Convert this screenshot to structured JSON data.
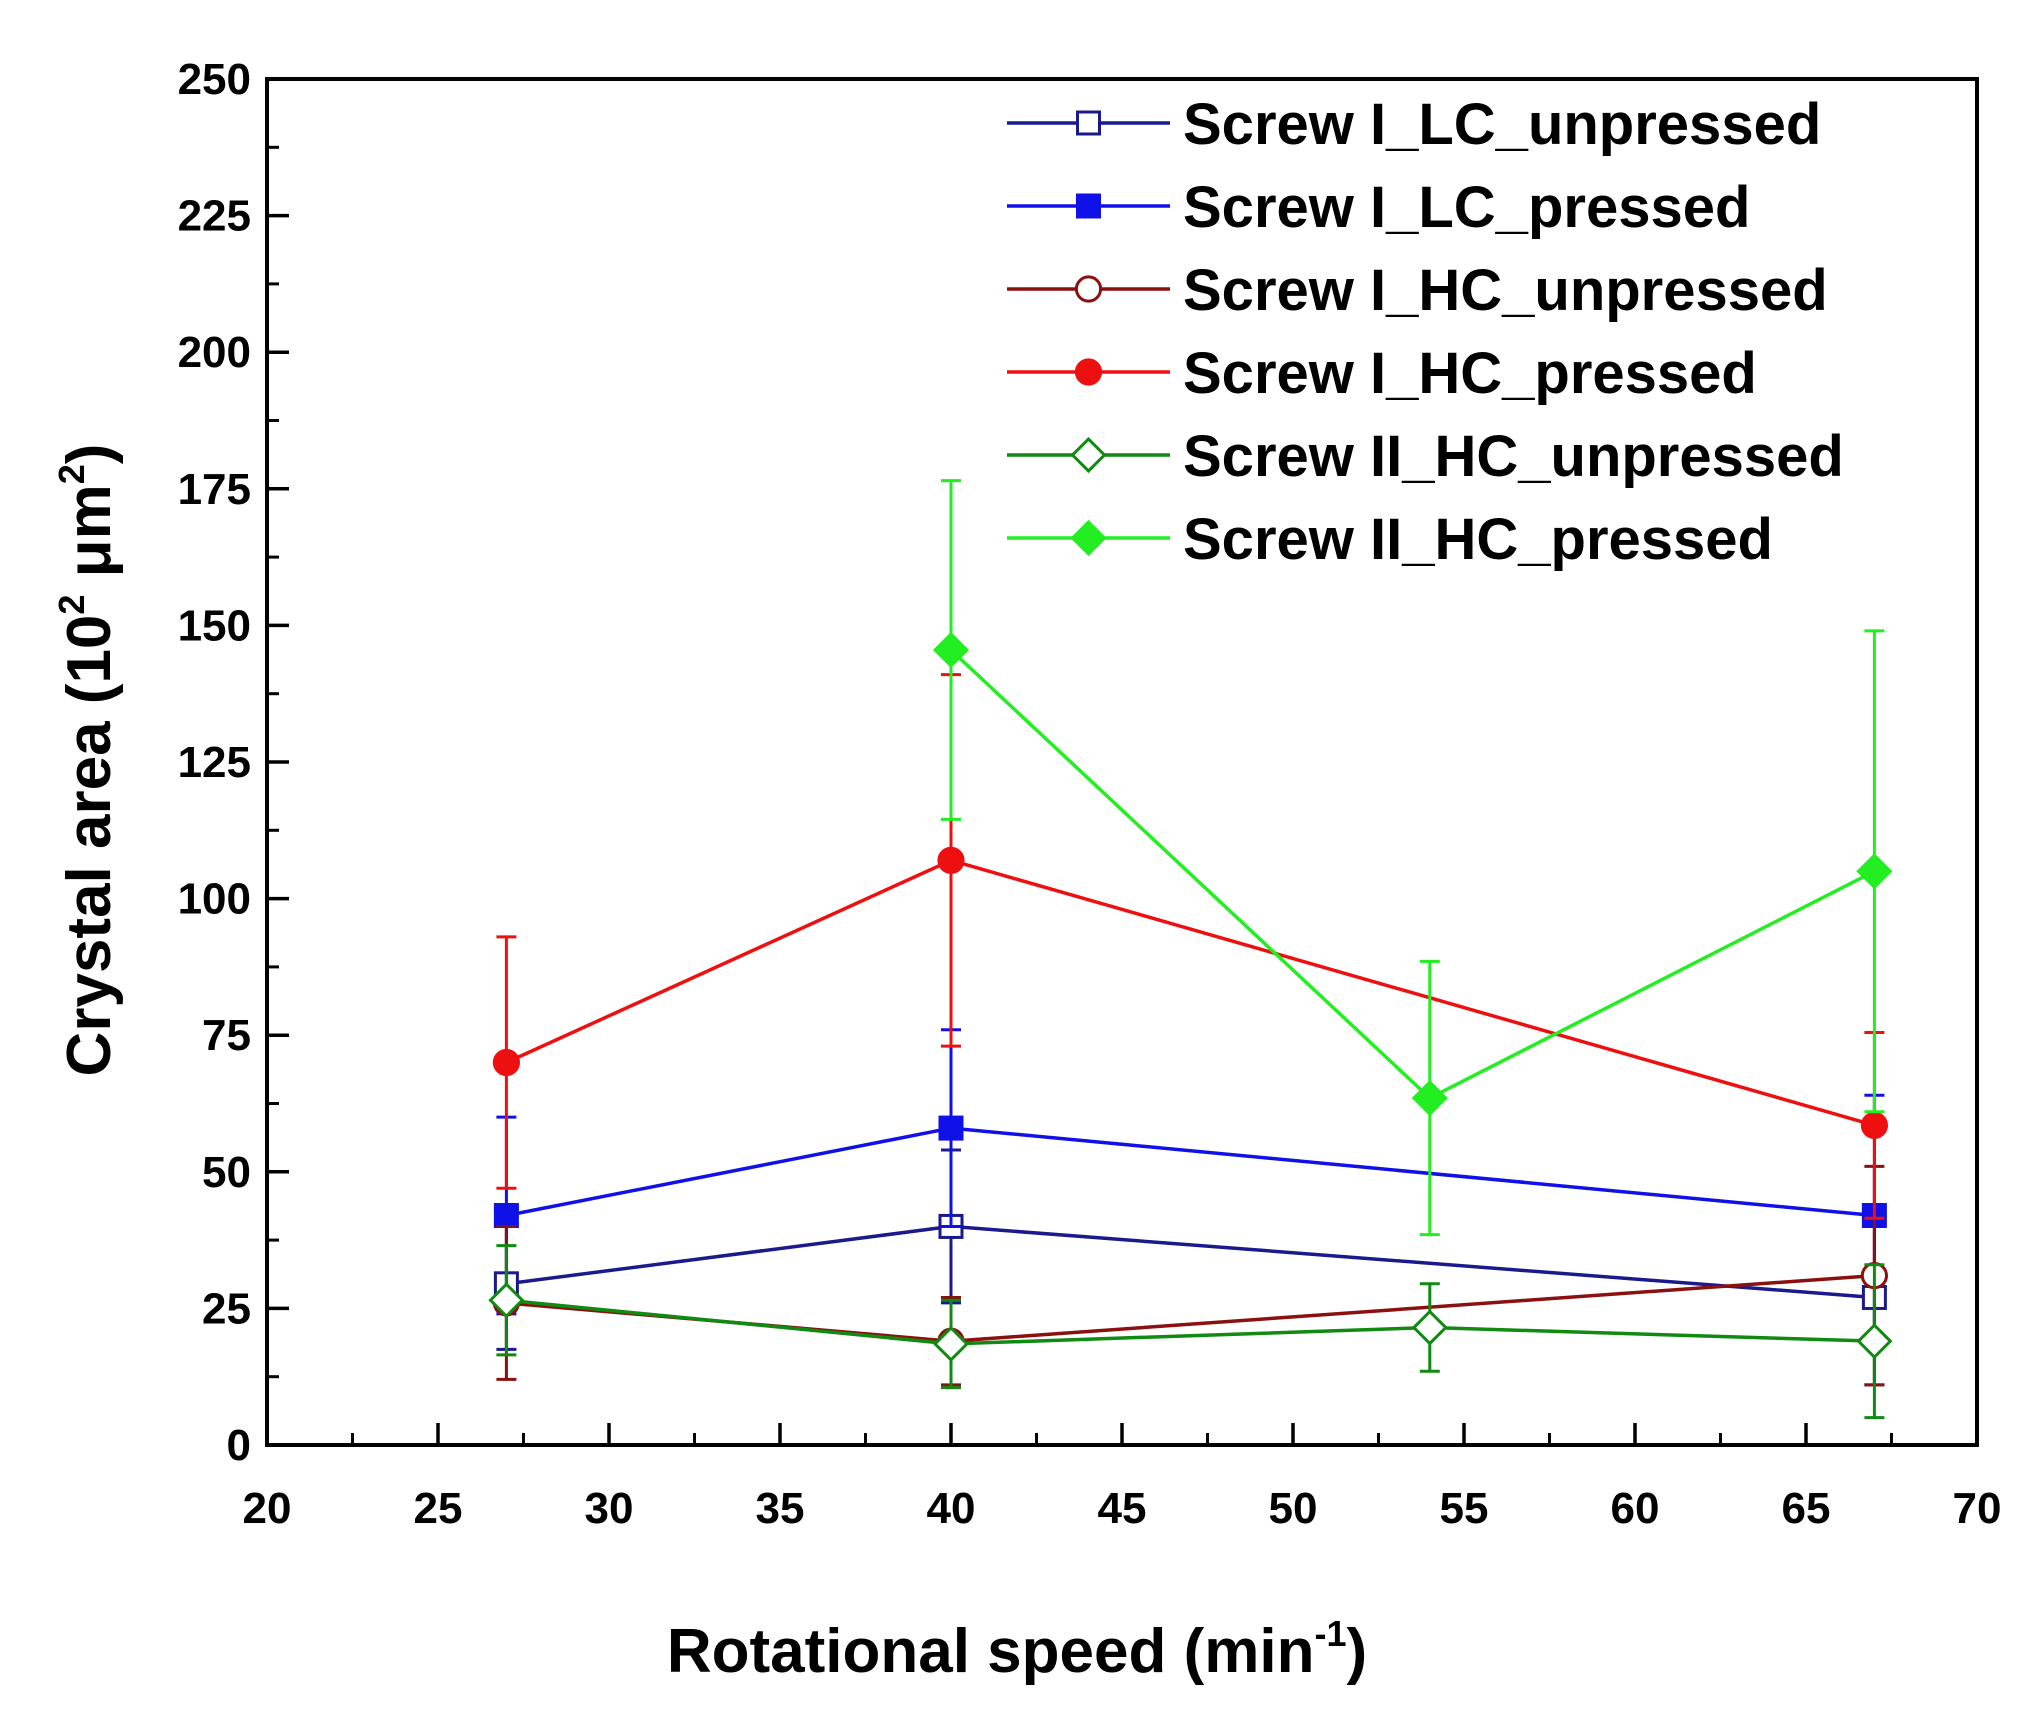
{
  "chart_data": {
    "type": "line",
    "xlabel": "Rotational speed (min",
    "xlabel_sup": "-1",
    "xlabel_tail": ")",
    "ylabel": "Crystal area (10",
    "ylabel_sup": "2",
    "ylabel_mid": " μm",
    "ylabel_sup2": "2",
    "ylabel_tail": ")",
    "xlim": [
      20,
      70
    ],
    "ylim": [
      0,
      250
    ],
    "xticks": [
      20,
      25,
      30,
      35,
      40,
      45,
      50,
      55,
      60,
      65,
      70
    ],
    "yticks": [
      0,
      25,
      50,
      75,
      100,
      125,
      150,
      175,
      200,
      225,
      250
    ],
    "grid": false,
    "legend_position": "top-right",
    "series": [
      {
        "name": "Screw I_LC_unpressed",
        "color": "#1a1a8c",
        "marker": "square",
        "filled": false,
        "x": [
          27,
          40,
          67
        ],
        "y": [
          29.5,
          40,
          27
        ],
        "err_lo": [
          12,
          14,
          16
        ],
        "err_hi": [
          12,
          14,
          16
        ]
      },
      {
        "name": "Screw I_LC_pressed",
        "color": "#1010e8",
        "marker": "square",
        "filled": true,
        "x": [
          27,
          40,
          67
        ],
        "y": [
          42,
          58,
          42
        ],
        "err_lo": [
          18,
          18,
          22
        ],
        "err_hi": [
          18,
          18,
          22
        ]
      },
      {
        "name": "Screw I_HC_unpressed",
        "color": "#8b1010",
        "marker": "circle",
        "filled": false,
        "x": [
          27,
          40,
          67
        ],
        "y": [
          26,
          19,
          31
        ],
        "err_lo": [
          14,
          8,
          20
        ],
        "err_hi": [
          14,
          8,
          20
        ]
      },
      {
        "name": "Screw I_HC_pressed",
        "color": "#ee1010",
        "marker": "circle",
        "filled": true,
        "x": [
          27,
          40,
          67
        ],
        "y": [
          70,
          107,
          58.5
        ],
        "err_lo": [
          23,
          34,
          17
        ],
        "err_hi": [
          23,
          34,
          17
        ]
      },
      {
        "name": "Screw II_HC_unpressed",
        "color": "#108a10",
        "marker": "diamond",
        "filled": false,
        "x": [
          27,
          40,
          54,
          67
        ],
        "y": [
          26.5,
          18.5,
          21.5,
          19
        ],
        "err_lo": [
          10,
          8,
          8,
          14
        ],
        "err_hi": [
          10,
          8,
          8,
          14
        ]
      },
      {
        "name": "Screw II_HC_pressed",
        "color": "#22ee22",
        "marker": "diamond",
        "filled": true,
        "x": [
          40,
          54,
          67
        ],
        "y": [
          145.5,
          63.5,
          105
        ],
        "err_lo": [
          31,
          25,
          44
        ],
        "err_hi": [
          31,
          25,
          44
        ]
      }
    ]
  }
}
